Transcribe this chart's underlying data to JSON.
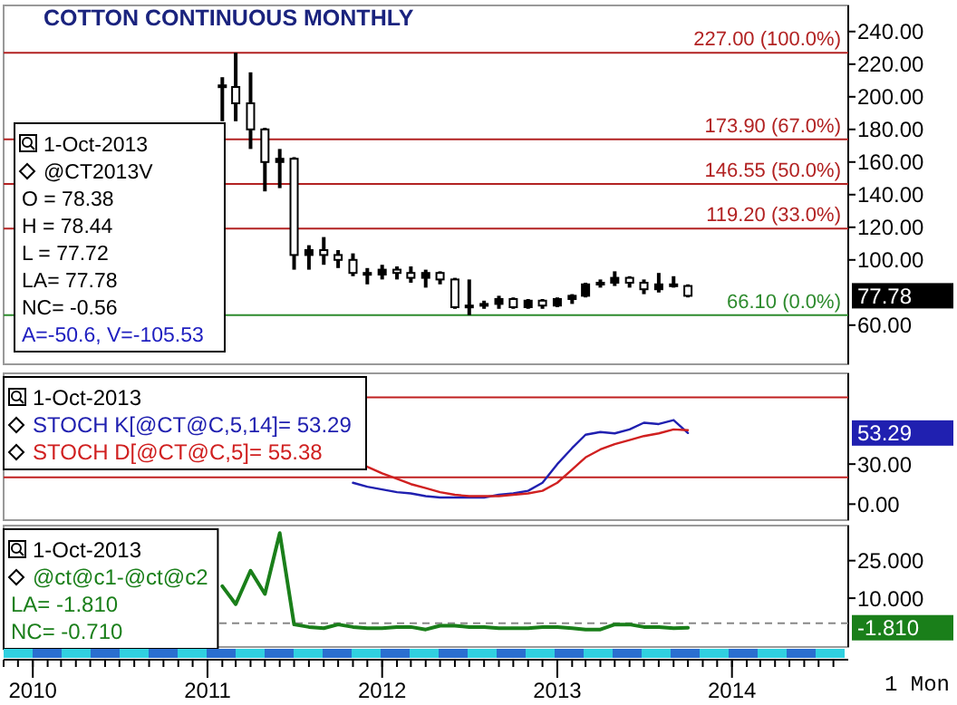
{
  "chart_data": [
    {
      "type": "candlestick",
      "title": "COTTON CONTINUOUS MONTHLY",
      "legend": "top left",
      "tick_labels": "y",
      "grid": false,
      "xlim": [
        "2009-11",
        "2014-09"
      ],
      "x": [
        "2011-02",
        "2011-03",
        "2011-04",
        "2011-05",
        "2011-06",
        "2011-07",
        "2011-08",
        "2011-09",
        "2011-10",
        "2011-11",
        "2011-12",
        "2012-01",
        "2012-02",
        "2012-03",
        "2012-04",
        "2012-05",
        "2012-06",
        "2012-07",
        "2012-08",
        "2012-09",
        "2012-10",
        "2012-11",
        "2012-12",
        "2013-01",
        "2013-02",
        "2013-03",
        "2013-04",
        "2013-05",
        "2013-06",
        "2013-07",
        "2013-08",
        "2013-09",
        "2013-10"
      ],
      "series": [
        {
          "name": "@CT2013V",
          "color": "#000000",
          "ohlc": [
            [
              207,
              212,
              185,
              206
            ],
            [
              206,
              227,
              185,
              196
            ],
            [
              196,
              215,
              168,
              180
            ],
            [
              180,
              181,
              142,
              160
            ],
            [
              160,
              168,
              144,
              162
            ],
            [
              162,
              163,
              94,
              103
            ],
            [
              103,
              109,
              94,
              106
            ],
            [
              106,
              114,
              97,
              103
            ],
            [
              103,
              106,
              95,
              100
            ],
            [
              100,
              104,
              90,
              92
            ],
            [
              92,
              95,
              85,
              91
            ],
            [
              91,
              97,
              88,
              94
            ],
            [
              94,
              96,
              88,
              92
            ],
            [
              92,
              96,
              86,
              89
            ],
            [
              89,
              94,
              83,
              92
            ],
            [
              92,
              93,
              85,
              88
            ],
            [
              88,
              89,
              70,
              71
            ],
            [
              71,
              88,
              66.1,
              72
            ],
            [
              72,
              75,
              70,
              73
            ],
            [
              73,
              78,
              70,
              76
            ],
            [
              76,
              77,
              70,
              71
            ],
            [
              71,
              76,
              70,
              75
            ],
            [
              75,
              76,
              70,
              72
            ],
            [
              72,
              77,
              71,
              76
            ],
            [
              76,
              79,
              73,
              78
            ],
            [
              78,
              86,
              77,
              85
            ],
            [
              85,
              88,
              83,
              86
            ],
            [
              86,
              93,
              84,
              89
            ],
            [
              89,
              90,
              83,
              86
            ],
            [
              86,
              88,
              79,
              82
            ],
            [
              82,
              92,
              80,
              85
            ],
            [
              85,
              90,
              83,
              84
            ],
            [
              84,
              85,
              77,
              78
            ]
          ]
        }
      ],
      "ylim": [
        36,
        256
      ],
      "yticks": [
        {
          "value": 60,
          "label": "60.00"
        },
        {
          "value": 100,
          "label": "100.00"
        },
        {
          "value": 120,
          "label": "120.00"
        },
        {
          "value": 140,
          "label": "140.00"
        },
        {
          "value": 160,
          "label": "160.00"
        },
        {
          "value": 180,
          "label": "180.00"
        },
        {
          "value": 200,
          "label": "200.00"
        },
        {
          "value": 220,
          "label": "220.00"
        },
        {
          "value": 240,
          "label": "240.00"
        }
      ],
      "ref_lines": [
        {
          "axis": "y",
          "value": 227,
          "label": "227.00 (100.0%)",
          "color": "#b22222"
        },
        {
          "axis": "y",
          "value": 173.9,
          "label": "173.90 (67.0%)",
          "color": "#b22222"
        },
        {
          "axis": "y",
          "value": 146.55,
          "label": "146.55 (50.0%)",
          "color": "#b22222"
        },
        {
          "axis": "y",
          "value": 119.2,
          "label": "119.20 (33.0%)",
          "color": "#b22222"
        },
        {
          "axis": "y",
          "value": 66.1,
          "label": "66.10 (0.0%)",
          "color": "#2e8b2e"
        }
      ],
      "annotations": [
        "1-Oct-2013",
        "O = 78.38",
        "H = 78.44",
        "L = 77.72",
        "LA= 77.78",
        "NC= -0.56",
        "A=-50.6, V=-105.53",
        "77.78"
      ]
    },
    {
      "type": "line",
      "legend": "top left",
      "tick_labels": "y",
      "grid": false,
      "marker": "none",
      "line_style": "solid",
      "xlim": [
        "2009-11",
        "2014-09"
      ],
      "x": [
        "2011-11",
        "2011-12",
        "2012-01",
        "2012-02",
        "2012-03",
        "2012-04",
        "2012-05",
        "2012-06",
        "2012-07",
        "2012-08",
        "2012-09",
        "2012-10",
        "2012-11",
        "2012-12",
        "2013-01",
        "2013-02",
        "2013-03",
        "2013-04",
        "2013-05",
        "2013-06",
        "2013-07",
        "2013-08",
        "2013-09",
        "2013-10"
      ],
      "series": [
        {
          "name": "STOCH K[@CT@C,5,14]= 53.29",
          "color": "#2020b0",
          "values": [
            16,
            13,
            11,
            9,
            8,
            6,
            5,
            5,
            5,
            5,
            7,
            8,
            10,
            16,
            30,
            42,
            52,
            54,
            53,
            56,
            61,
            60,
            63,
            53.29
          ]
        },
        {
          "name": "STOCH D[@CT@C,5]= 55.38",
          "color": "#d02020",
          "values": [
            null,
            28,
            23,
            19,
            15,
            12,
            9,
            7,
            6,
            6,
            6,
            7,
            8,
            10,
            16,
            26,
            35,
            41,
            45,
            48,
            51,
            53,
            56,
            55.38
          ]
        }
      ],
      "ylim": [
        -12,
        98
      ],
      "yticks": [
        {
          "value": 0,
          "label": "0.00"
        },
        {
          "value": 30,
          "label": "30.00"
        }
      ],
      "ref_lines": [
        {
          "axis": "y",
          "value": 80,
          "color": "#c02020"
        },
        {
          "axis": "y",
          "value": 20,
          "color": "#c02020"
        }
      ],
      "annotations": [
        "1-Oct-2013",
        "53.29"
      ]
    },
    {
      "type": "line",
      "legend": "top left",
      "grid": false,
      "marker": "none",
      "line_style": "solid",
      "xlabel": "1 Mon",
      "xlim": [
        "2009-11",
        "2014-09"
      ],
      "xticks": [
        {
          "value": "2010",
          "label": "2010"
        },
        {
          "value": "2011",
          "label": "2011"
        },
        {
          "value": "2012",
          "label": "2012"
        },
        {
          "value": "2013",
          "label": "2013"
        },
        {
          "value": "2014",
          "label": "2014"
        }
      ],
      "x": [
        "2011-02",
        "2011-03",
        "2011-04",
        "2011-05",
        "2011-06",
        "2011-07",
        "2011-08",
        "2011-09",
        "2011-10",
        "2011-11",
        "2011-12",
        "2012-01",
        "2012-02",
        "2012-03",
        "2012-04",
        "2012-05",
        "2012-06",
        "2012-07",
        "2012-08",
        "2012-09",
        "2012-10",
        "2012-11",
        "2012-12",
        "2013-01",
        "2013-02",
        "2013-03",
        "2013-04",
        "2013-05",
        "2013-06",
        "2013-07",
        "2013-08",
        "2013-09",
        "2013-10"
      ],
      "series": [
        {
          "name": "@ct@c1-@ct@c2",
          "color": "#1a7f1a",
          "values": [
            14.8,
            7.6,
            21,
            11.7,
            36,
            -0.5,
            -1.5,
            -2,
            -0.5,
            -1.5,
            -2,
            -2,
            -1.5,
            -1.5,
            -2.5,
            -1,
            -1,
            -1.5,
            -1.5,
            -2,
            -2,
            -2,
            -1.5,
            -1.5,
            -2,
            -2.5,
            -2.5,
            -0.5,
            -0.5,
            -1.5,
            -1.5,
            -2,
            -1.8
          ]
        }
      ],
      "ylim": [
        -9.5,
        39
      ],
      "yticks": [
        {
          "value": 10,
          "label": "10.000"
        },
        {
          "value": 25,
          "label": "25.000"
        }
      ],
      "ref_lines": [
        {
          "axis": "y",
          "value": 0,
          "color": "#888888",
          "line_style": "dashed"
        }
      ],
      "annotations": [
        "1-Oct-2013",
        "LA= -1.810",
        "NC= -0.710",
        "-1.810"
      ]
    }
  ]
}
